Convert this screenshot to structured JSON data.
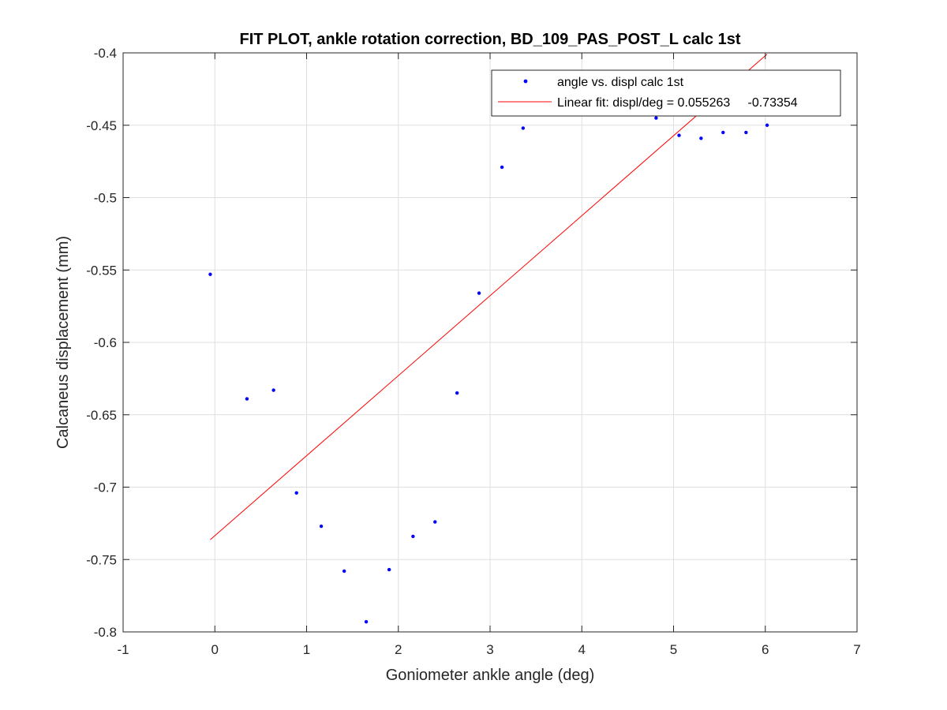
{
  "chart_data": {
    "type": "scatter",
    "title": "FIT PLOT, ankle rotation correction, BD_109_PAS_POST_L calc 1st",
    "xlabel": "Goniometer ankle angle (deg)",
    "ylabel": "Calcaneus displacement (mm)",
    "xlim": [
      -1,
      7
    ],
    "ylim": [
      -0.8,
      -0.4
    ],
    "x_ticks": [
      -1,
      0,
      1,
      2,
      3,
      4,
      5,
      6,
      7
    ],
    "x_tick_labels": [
      "-1",
      "0",
      "1",
      "2",
      "3",
      "4",
      "5",
      "6",
      "7"
    ],
    "y_ticks": [
      -0.8,
      -0.75,
      -0.7,
      -0.65,
      -0.6,
      -0.55,
      -0.5,
      -0.45,
      -0.4
    ],
    "y_tick_labels": [
      "-0.8",
      "-0.75",
      "-0.7",
      "-0.65",
      "-0.6",
      "-0.55",
      "-0.5",
      "-0.45",
      "-0.4"
    ],
    "grid": true,
    "legend_position": "top-right",
    "series": [
      {
        "name": "angle vs. displ calc 1st",
        "kind": "points",
        "color": "#0000ff",
        "x": [
          -0.05,
          0.35,
          0.64,
          0.89,
          1.16,
          1.41,
          1.65,
          1.9,
          2.16,
          2.4,
          2.64,
          2.88,
          3.13,
          3.36,
          4.81,
          5.06,
          5.3,
          5.54,
          5.79,
          6.02
        ],
        "y": [
          -0.553,
          -0.639,
          -0.633,
          -0.704,
          -0.727,
          -0.758,
          -0.793,
          -0.757,
          -0.734,
          -0.724,
          -0.635,
          -0.566,
          -0.479,
          -0.452,
          -0.445,
          -0.457,
          -0.459,
          -0.455,
          -0.455,
          -0.45
        ]
      },
      {
        "name": "Linear fit: displ/deg = 0.055263     -0.73354",
        "kind": "line",
        "color": "#ff0000",
        "slope": 0.055263,
        "intercept": -0.73354,
        "x_range": [
          -0.05,
          6.02
        ]
      }
    ]
  }
}
